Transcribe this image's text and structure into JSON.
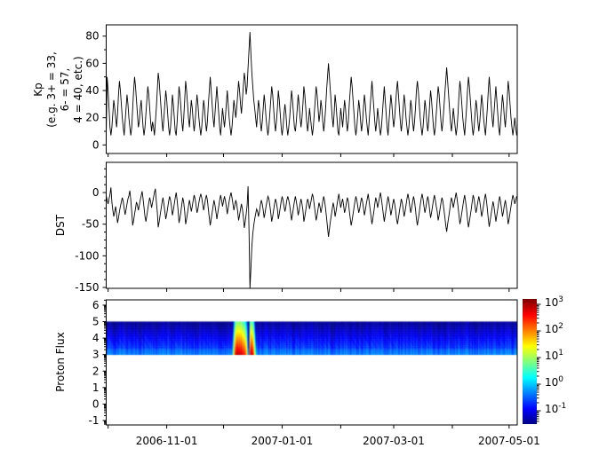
{
  "figure": {
    "background": "#ffffff",
    "line_color": "#000000",
    "text_color": "#000000"
  },
  "x_axis": {
    "domain_days": [
      -1,
      216.3
    ],
    "tick_days": [
      0,
      31,
      61,
      92,
      123,
      151,
      182,
      212
    ],
    "labels": [
      {
        "day": 31,
        "text": "2006-11-01"
      },
      {
        "day": 92,
        "text": "2007-01-01"
      },
      {
        "day": 151,
        "text": "2007-03-01"
      },
      {
        "day": 212,
        "text": "2007-05-01"
      }
    ]
  },
  "chart_data": [
    {
      "type": "line",
      "ylabel_lines": [
        "Kp",
        "(e.g. 3+ = 33,",
        "6- = 57,",
        "4 = 40, etc.)"
      ],
      "ylim": [
        -6.3,
        88.3
      ],
      "yticks": [
        0,
        20,
        40,
        60,
        80
      ],
      "yminor_step": 10,
      "x_start_day": -1,
      "x_step_days": 0.5,
      "values": [
        7,
        50,
        40,
        27,
        13,
        7,
        13,
        23,
        33,
        27,
        20,
        13,
        23,
        37,
        47,
        40,
        30,
        20,
        13,
        7,
        17,
        27,
        37,
        30,
        20,
        13,
        7,
        13,
        27,
        40,
        50,
        43,
        33,
        23,
        13,
        17,
        27,
        33,
        23,
        13,
        7,
        13,
        23,
        33,
        43,
        37,
        27,
        17,
        10,
        17,
        13,
        7,
        17,
        27,
        40,
        53,
        47,
        37,
        27,
        17,
        10,
        20,
        30,
        40,
        33,
        23,
        13,
        7,
        13,
        23,
        37,
        30,
        20,
        10,
        7,
        17,
        30,
        43,
        37,
        27,
        17,
        10,
        20,
        33,
        47,
        40,
        30,
        20,
        13,
        23,
        33,
        27,
        17,
        10,
        17,
        27,
        37,
        30,
        20,
        13,
        7,
        13,
        23,
        33,
        27,
        17,
        10,
        17,
        30,
        40,
        50,
        40,
        30,
        20,
        13,
        23,
        33,
        43,
        33,
        23,
        13,
        7,
        17,
        27,
        20,
        13,
        20,
        30,
        40,
        30,
        20,
        13,
        7,
        13,
        23,
        33,
        27,
        20,
        27,
        37,
        47,
        40,
        30,
        23,
        33,
        43,
        53,
        47,
        37,
        43,
        57,
        70,
        83,
        67,
        53,
        43,
        33,
        27,
        20,
        13,
        23,
        33,
        27,
        17,
        10,
        17,
        27,
        37,
        30,
        20,
        13,
        7,
        13,
        23,
        33,
        43,
        37,
        27,
        17,
        10,
        17,
        27,
        40,
        33,
        23,
        13,
        7,
        13,
        23,
        30,
        23,
        13,
        7,
        13,
        20,
        30,
        40,
        33,
        23,
        13,
        10,
        17,
        27,
        37,
        30,
        20,
        13,
        20,
        30,
        43,
        37,
        27,
        17,
        10,
        17,
        27,
        20,
        13,
        7,
        13,
        23,
        33,
        43,
        37,
        27,
        17,
        23,
        33,
        27,
        17,
        10,
        17,
        27,
        40,
        50,
        60,
        50,
        40,
        30,
        20,
        13,
        23,
        37,
        30,
        20,
        10,
        7,
        17,
        27,
        20,
        13,
        23,
        33,
        27,
        17,
        10,
        17,
        30,
        40,
        50,
        43,
        33,
        23,
        13,
        7,
        13,
        23,
        33,
        27,
        17,
        10,
        17,
        27,
        37,
        30,
        20,
        13,
        7,
        17,
        27,
        37,
        47,
        37,
        27,
        17,
        10,
        17,
        27,
        20,
        13,
        7,
        13,
        23,
        33,
        43,
        33,
        23,
        13,
        7,
        17,
        27,
        37,
        30,
        20,
        13,
        20,
        30,
        40,
        47,
        37,
        27,
        17,
        10,
        17,
        27,
        37,
        30,
        20,
        13,
        7,
        13,
        23,
        33,
        27,
        17,
        10,
        17,
        27,
        40,
        47,
        40,
        30,
        20,
        13,
        7,
        13,
        23,
        33,
        27,
        17,
        10,
        17,
        30,
        40,
        33,
        23,
        13,
        7,
        13,
        23,
        33,
        43,
        37,
        27,
        17,
        10,
        17,
        27,
        37,
        47,
        57,
        47,
        37,
        27,
        17,
        10,
        17,
        27,
        20,
        13,
        7,
        13,
        23,
        37,
        47,
        40,
        30,
        20,
        13,
        7,
        17,
        27,
        40,
        50,
        43,
        33,
        23,
        13,
        7,
        13,
        23,
        33,
        27,
        17,
        10,
        17,
        27,
        37,
        30,
        20,
        13,
        7,
        17,
        27,
        40,
        50,
        40,
        30,
        20,
        13,
        23,
        33,
        43,
        33,
        23,
        13,
        7,
        17,
        27,
        37,
        30,
        20,
        13,
        23,
        33,
        47,
        40,
        30,
        20,
        13,
        7,
        13,
        20,
        13,
        7
      ]
    },
    {
      "type": "line",
      "ylabel": "DST",
      "ylim": [
        -151.4,
        47.7
      ],
      "yticks": [
        0,
        -50,
        -100,
        -150
      ],
      "yminor_step": 12.5,
      "x_start_day": -1,
      "x_step_days": 0.5,
      "values": [
        -5,
        -12,
        -18,
        -10,
        -3,
        8,
        -15,
        -28,
        -38,
        -30,
        -22,
        -35,
        -48,
        -40,
        -30,
        -22,
        -15,
        -8,
        -14,
        -25,
        -35,
        -27,
        -18,
        -10,
        -5,
        3,
        -12,
        -30,
        -52,
        -44,
        -34,
        -25,
        -15,
        -20,
        -28,
        -20,
        -12,
        -5,
        2,
        -10,
        -24,
        -38,
        -46,
        -36,
        -26,
        -16,
        -8,
        -15,
        -24,
        -16,
        -8,
        0,
        6,
        -14,
        -30,
        -55,
        -46,
        -36,
        -26,
        -16,
        -8,
        -18,
        -30,
        -42,
        -34,
        -24,
        -14,
        -6,
        -12,
        -22,
        -36,
        -28,
        -18,
        -8,
        0,
        -12,
        -28,
        -48,
        -40,
        -30,
        -18,
        -8,
        -16,
        -30,
        -50,
        -42,
        -32,
        -22,
        -12,
        -20,
        -30,
        -22,
        -12,
        -4,
        -10,
        -20,
        -32,
        -26,
        -16,
        -8,
        -2,
        -8,
        -18,
        -28,
        -20,
        -10,
        -4,
        -12,
        -26,
        -40,
        -52,
        -42,
        -32,
        -22,
        -12,
        -20,
        -30,
        -42,
        -32,
        -22,
        -12,
        -4,
        -12,
        -22,
        -14,
        -6,
        -12,
        -22,
        -34,
        -24,
        -14,
        -6,
        0,
        -8,
        -18,
        -28,
        -20,
        -12,
        -18,
        -30,
        -44,
        -36,
        -26,
        -18,
        -26,
        -38,
        -56,
        -46,
        -34,
        -20,
        10,
        -60,
        -162,
        -120,
        -85,
        -65,
        -52,
        -42,
        -34,
        -26,
        -30,
        -38,
        -30,
        -20,
        -12,
        -18,
        -28,
        -40,
        -32,
        -22,
        -14,
        -6,
        -10,
        -20,
        -32,
        -46,
        -38,
        -28,
        -18,
        -10,
        -16,
        -26,
        -42,
        -34,
        -24,
        -14,
        -6,
        -12,
        -22,
        -30,
        -22,
        -12,
        -6,
        -12,
        -20,
        -32,
        -44,
        -34,
        -24,
        -14,
        -6,
        -14,
        -24,
        -36,
        -28,
        -18,
        -10,
        -18,
        -28,
        -46,
        -38,
        -28,
        -18,
        -10,
        -16,
        -26,
        -18,
        -10,
        -2,
        -8,
        -20,
        -32,
        -44,
        -36,
        -26,
        -16,
        -22,
        -32,
        -24,
        -14,
        -6,
        -14,
        -26,
        -40,
        -55,
        -70,
        -58,
        -46,
        -36,
        -26,
        -16,
        -24,
        -38,
        -30,
        -20,
        -10,
        -2,
        -14,
        -24,
        -16,
        -10,
        -20,
        -32,
        -26,
        -16,
        -8,
        -14,
        -28,
        -40,
        -52,
        -44,
        -34,
        -24,
        -14,
        -6,
        -12,
        -22,
        -32,
        -26,
        -16,
        -8,
        -14,
        -24,
        -36,
        -28,
        -18,
        -10,
        -2,
        -14,
        -26,
        -38,
        -50,
        -40,
        -30,
        -18,
        -8,
        -14,
        -24,
        -16,
        -8,
        0,
        -10,
        -22,
        -34,
        -46,
        -36,
        -26,
        -16,
        -6,
        -14,
        -24,
        -36,
        -28,
        -18,
        -10,
        -18,
        -28,
        -42,
        -50,
        -40,
        -30,
        -20,
        -10,
        -16,
        -26,
        -38,
        -30,
        -20,
        -10,
        -2,
        -10,
        -22,
        -32,
        -24,
        -14,
        -6,
        -14,
        -26,
        -42,
        -52,
        -42,
        -32,
        -20,
        -10,
        -2,
        -10,
        -22,
        -32,
        -24,
        -14,
        -6,
        -14,
        -28,
        -40,
        -32,
        -22,
        -12,
        -4,
        -12,
        -22,
        -30,
        -44,
        -36,
        -26,
        -16,
        -8,
        -14,
        -26,
        -38,
        -52,
        -62,
        -50,
        -40,
        -30,
        -18,
        -8,
        -14,
        -24,
        -16,
        -8,
        0,
        -10,
        -22,
        -36,
        -50,
        -42,
        -32,
        -22,
        -12,
        -4,
        -14,
        -26,
        -42,
        -55,
        -46,
        -36,
        -26,
        -14,
        -4,
        -10,
        -22,
        -32,
        -24,
        -14,
        -6,
        -14,
        -26,
        -38,
        -30,
        -20,
        -10,
        -2,
        -12,
        -26,
        -42,
        -54,
        -44,
        -34,
        -24,
        -14,
        -22,
        -34,
        -46,
        -36,
        -26,
        -16,
        -6,
        -14,
        -26,
        -38,
        -30,
        -20,
        -12,
        -22,
        -34,
        -50,
        -42,
        -32,
        -22,
        -12,
        -4,
        -10,
        -18,
        -12,
        -6
      ]
    },
    {
      "type": "heatmap",
      "ylabel": "Proton Flux",
      "yscale": "log10_exponent",
      "ylim": [
        -1.27,
        6.32
      ],
      "yticks": [
        -1,
        0,
        1,
        2,
        3,
        4,
        5,
        6
      ],
      "band_exponent_range": [
        3,
        5
      ],
      "base_flux_bottom": 0.5,
      "base_vertical_decay": 0.5,
      "event_vertical_decay": 1.05,
      "event": {
        "start_day": 66,
        "step_days": 0.5,
        "bottom_flux": [
          3,
          30,
          200,
          600,
          900,
          950,
          800,
          900,
          750,
          850,
          600,
          400,
          450,
          250,
          120,
          40,
          0.05,
          0.03,
          250,
          700,
          800,
          450,
          150,
          30,
          4,
          0.8,
          0.3
        ]
      },
      "colorbar": {
        "scale": "log",
        "colormap": "jet",
        "exp_range": [
          -1.5,
          3.2
        ],
        "tick_exponents": [
          3,
          2,
          1,
          0,
          -1
        ],
        "tick_labels": [
          {
            "mantissa": "10",
            "exponent": "3"
          },
          {
            "mantissa": "10",
            "exponent": "2"
          },
          {
            "mantissa": "10",
            "exponent": "1"
          },
          {
            "mantissa": "10",
            "exponent": "0"
          },
          {
            "mantissa": "10",
            "exponent": "-1"
          }
        ]
      }
    }
  ]
}
